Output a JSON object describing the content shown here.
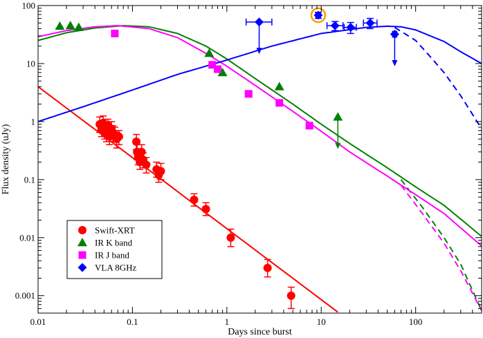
{
  "chart_data": {
    "type": "scatter",
    "title": "",
    "xlabel": "Days since burst",
    "ylabel": "Flux density (uJy)",
    "xscale": "log",
    "yscale": "log",
    "xlim": [
      0.01,
      500
    ],
    "ylim": [
      0.0005,
      100
    ],
    "grid": false,
    "legend_position": "bottom-left",
    "x_ticks": [
      {
        "value": 0.01,
        "label": "0.01"
      },
      {
        "value": 0.1,
        "label": "0.1"
      },
      {
        "value": 1,
        "label": "1"
      },
      {
        "value": 10,
        "label": "10"
      },
      {
        "value": 100,
        "label": "100"
      }
    ],
    "y_ticks": [
      {
        "value": 0.001,
        "label": "0.001"
      },
      {
        "value": 0.01,
        "label": "0.01"
      },
      {
        "value": 0.1,
        "label": "0.1"
      },
      {
        "value": 1,
        "label": "1"
      },
      {
        "value": 10,
        "label": "10"
      },
      {
        "value": 100,
        "label": "100"
      }
    ],
    "series": [
      {
        "name": "Swift-XRT",
        "color": "#ff0000",
        "marker": "circle",
        "points": [
          {
            "x": 0.045,
            "y": 0.9,
            "err": [
              0.25,
              0.3
            ]
          },
          {
            "x": 0.047,
            "y": 0.75,
            "err": [
              0.2,
              0.25
            ]
          },
          {
            "x": 0.049,
            "y": 0.95,
            "err": [
              0.25,
              0.3
            ]
          },
          {
            "x": 0.051,
            "y": 0.7,
            "err": [
              0.2,
              0.25
            ]
          },
          {
            "x": 0.053,
            "y": 0.6,
            "err": [
              0.15,
              0.2
            ]
          },
          {
            "x": 0.055,
            "y": 0.85,
            "err": [
              0.2,
              0.25
            ]
          },
          {
            "x": 0.057,
            "y": 0.55,
            "err": [
              0.15,
              0.2
            ]
          },
          {
            "x": 0.06,
            "y": 0.75,
            "err": [
              0.2,
              0.25
            ]
          },
          {
            "x": 0.062,
            "y": 0.65,
            "err": [
              0.2,
              0.2
            ]
          },
          {
            "x": 0.065,
            "y": 0.6,
            "err": [
              0.15,
              0.2
            ]
          },
          {
            "x": 0.068,
            "y": 0.5,
            "err": [
              0.15,
              0.15
            ]
          },
          {
            "x": 0.072,
            "y": 0.55,
            "err": [
              0.15,
              0.15
            ]
          },
          {
            "x": 0.11,
            "y": 0.45,
            "err": [
              0.12,
              0.15
            ]
          },
          {
            "x": 0.112,
            "y": 0.3,
            "err": [
              0.08,
              0.1
            ]
          },
          {
            "x": 0.115,
            "y": 0.25,
            "err": [
              0.07,
              0.08
            ]
          },
          {
            "x": 0.12,
            "y": 0.2,
            "err": [
              0.05,
              0.07
            ]
          },
          {
            "x": 0.125,
            "y": 0.3,
            "err": [
              0.08,
              0.1
            ]
          },
          {
            "x": 0.13,
            "y": 0.22,
            "err": [
              0.06,
              0.07
            ]
          },
          {
            "x": 0.14,
            "y": 0.18,
            "err": [
              0.05,
              0.06
            ]
          },
          {
            "x": 0.18,
            "y": 0.15,
            "err": [
              0.04,
              0.05
            ]
          },
          {
            "x": 0.19,
            "y": 0.12,
            "err": [
              0.03,
              0.04
            ]
          },
          {
            "x": 0.2,
            "y": 0.14,
            "err": [
              0.04,
              0.05
            ]
          },
          {
            "x": 0.45,
            "y": 0.045,
            "err": [
              0.01,
              0.012
            ]
          },
          {
            "x": 0.6,
            "y": 0.031,
            "err": [
              0.007,
              0.009
            ]
          },
          {
            "x": 1.1,
            "y": 0.01,
            "err": [
              0.003,
              0.004
            ]
          },
          {
            "x": 2.7,
            "y": 0.003,
            "err": [
              0.0009,
              0.0012
            ]
          },
          {
            "x": 4.8,
            "y": 0.001,
            "err": [
              0.0004,
              0.0004
            ]
          }
        ]
      },
      {
        "name": "IR K band",
        "color": "#008000",
        "marker": "triangle",
        "points": [
          {
            "x": 0.017,
            "y": 44
          },
          {
            "x": 0.022,
            "y": 45
          },
          {
            "x": 0.027,
            "y": 42
          },
          {
            "x": 0.65,
            "y": 15
          },
          {
            "x": 0.9,
            "y": 7
          },
          {
            "x": 3.6,
            "y": 4
          },
          {
            "x": 15,
            "y": 1.2,
            "upper_limit": true
          }
        ]
      },
      {
        "name": "IR J band",
        "color": "#ff00ff",
        "marker": "square",
        "points": [
          {
            "x": 0.065,
            "y": 33
          },
          {
            "x": 0.7,
            "y": 9.5
          },
          {
            "x": 0.8,
            "y": 8
          },
          {
            "x": 1.7,
            "y": 3
          },
          {
            "x": 3.6,
            "y": 2.1
          },
          {
            "x": 7.5,
            "y": 0.85
          }
        ]
      },
      {
        "name": "VLA 8GHz",
        "color": "#0000ff",
        "marker": "diamond",
        "points": [
          {
            "x": 2.2,
            "y": 52,
            "xerr": [
              0.6,
              0.8
            ],
            "upper_limit": true
          },
          {
            "x": 9.3,
            "y": 68,
            "xerr": [
              0.5,
              0.5
            ],
            "yerr": [
              8,
              8
            ],
            "highlighted": true
          },
          {
            "x": 14,
            "y": 45,
            "xerr": [
              2.5,
              3
            ],
            "yerr": [
              8,
              8
            ]
          },
          {
            "x": 20.5,
            "y": 42,
            "xerr": [
              3,
              3
            ],
            "yerr": [
              9,
              9
            ]
          },
          {
            "x": 33,
            "y": 50,
            "xerr": [
              5,
              6
            ],
            "yerr": [
              10,
              10
            ]
          },
          {
            "x": 60,
            "y": 32,
            "xerr": [
              3,
              3
            ],
            "upper_limit": true
          }
        ]
      }
    ],
    "models": [
      {
        "series": "Swift-XRT",
        "color": "#ff0000",
        "style": "solid",
        "points": [
          [
            0.01,
            4
          ],
          [
            15,
            0.00052
          ]
        ]
      },
      {
        "series": "IR K band",
        "color": "#008000",
        "style": "solid",
        "points": [
          [
            0.01,
            25
          ],
          [
            0.02,
            34
          ],
          [
            0.04,
            41
          ],
          [
            0.08,
            45
          ],
          [
            0.15,
            43
          ],
          [
            0.3,
            33
          ],
          [
            0.6,
            20
          ],
          [
            1,
            12
          ],
          [
            2,
            5.5
          ],
          [
            5,
            2
          ],
          [
            10,
            0.9
          ],
          [
            20,
            0.42
          ],
          [
            50,
            0.16
          ],
          [
            100,
            0.075
          ],
          [
            200,
            0.036
          ],
          [
            500,
            0.0105
          ]
        ]
      },
      {
        "series": "IR K band",
        "color": "#008000",
        "style": "dashed",
        "points": [
          [
            70,
            0.1
          ],
          [
            120,
            0.032
          ],
          [
            200,
            0.01
          ],
          [
            300,
            0.0035
          ],
          [
            500,
            0.00055
          ]
        ]
      },
      {
        "series": "IR J band",
        "color": "#ff00ff",
        "style": "solid",
        "points": [
          [
            0.01,
            29
          ],
          [
            0.02,
            37
          ],
          [
            0.04,
            43
          ],
          [
            0.07,
            45
          ],
          [
            0.15,
            40
          ],
          [
            0.3,
            28
          ],
          [
            0.6,
            15
          ],
          [
            1,
            9
          ],
          [
            2,
            4.2
          ],
          [
            5,
            1.5
          ],
          [
            10,
            0.68
          ],
          [
            20,
            0.3
          ],
          [
            50,
            0.115
          ],
          [
            100,
            0.055
          ],
          [
            200,
            0.026
          ],
          [
            500,
            0.0072
          ]
        ]
      },
      {
        "series": "IR J band",
        "color": "#ff00ff",
        "style": "dashed",
        "points": [
          [
            70,
            0.08
          ],
          [
            120,
            0.025
          ],
          [
            200,
            0.008
          ],
          [
            300,
            0.0027
          ],
          [
            500,
            0.00055
          ]
        ]
      },
      {
        "series": "VLA 8GHz",
        "color": "#0000ff",
        "style": "solid",
        "points": [
          [
            0.01,
            1
          ],
          [
            0.03,
            1.8
          ],
          [
            0.1,
            3.5
          ],
          [
            0.3,
            6.5
          ],
          [
            1,
            11.5
          ],
          [
            3,
            20
          ],
          [
            10,
            33
          ],
          [
            30,
            42
          ],
          [
            50,
            44
          ],
          [
            70,
            43
          ],
          [
            100,
            38
          ],
          [
            200,
            24
          ],
          [
            300,
            16
          ],
          [
            500,
            10
          ]
        ]
      },
      {
        "series": "VLA 8GHz",
        "color": "#0000ff",
        "style": "dashed",
        "points": [
          [
            60,
            42
          ],
          [
            100,
            25
          ],
          [
            150,
            12
          ],
          [
            200,
            7
          ],
          [
            300,
            2.8
          ],
          [
            500,
            0.75
          ]
        ]
      }
    ],
    "annotations": [
      {
        "type": "circle",
        "x": 9.3,
        "y": 68,
        "color": "#f5a000"
      }
    ]
  }
}
